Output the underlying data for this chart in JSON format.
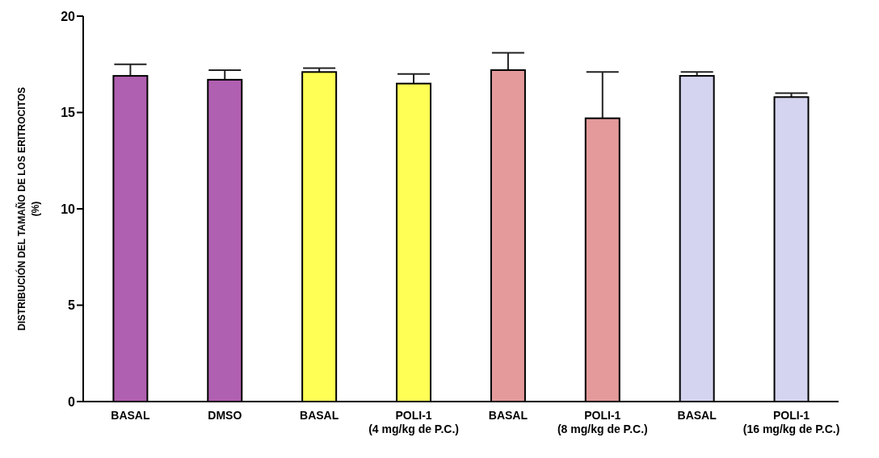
{
  "chart_data": {
    "type": "bar",
    "ylabel": "DISTRIBUCIÓN DEL TAMAÑO DE LOS ERITROCITOS\n(%)",
    "categories": [
      "BASAL",
      "DMSO",
      "BASAL",
      "POLI-1\n(4 mg/kg de P.C.)",
      "BASAL",
      "POLI-1\n(8 mg/kg de P.C.)",
      "BASAL",
      "POLI-1\n(16 mg/kg de P.C.)"
    ],
    "values": [
      16.9,
      16.7,
      17.1,
      16.5,
      17.2,
      14.7,
      16.9,
      15.8
    ],
    "errors": [
      [
        16.9,
        17.5
      ],
      [
        16.7,
        17.2
      ],
      [
        17.1,
        17.3
      ],
      [
        16.5,
        17.0
      ],
      [
        17.2,
        18.1
      ],
      [
        14.7,
        17.1
      ],
      [
        16.9,
        17.1
      ],
      [
        15.8,
        16.0
      ]
    ],
    "colors": [
      "#b060b0",
      "#b060b0",
      "#ffff55",
      "#ffff55",
      "#e49a9a",
      "#e49a9a",
      "#d4d4f0",
      "#d4d4f0"
    ],
    "ylim": [
      0,
      20
    ],
    "yticks": [
      0,
      5,
      10,
      15,
      20
    ]
  }
}
